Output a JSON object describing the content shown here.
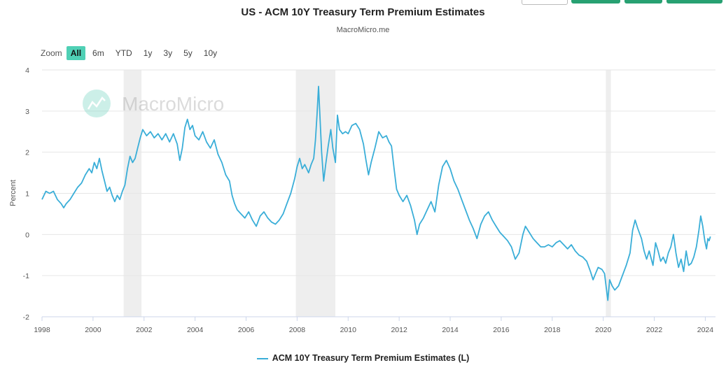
{
  "header": {
    "title": "US - ACM 10Y Treasury Term Premium Estimates",
    "subtitle": "MacroMicro.me"
  },
  "zoom": {
    "label": "Zoom",
    "options": [
      "All",
      "6m",
      "YTD",
      "1y",
      "3y",
      "5y",
      "10y"
    ],
    "active": "All"
  },
  "watermark": "MacroMicro",
  "legend": {
    "label": "ACM 10Y Treasury Term Premium Estimates (L)"
  },
  "colors": {
    "line": "#3aaed8",
    "recession": "#eeeeee",
    "grid": "#e6e6e6",
    "active_zoom": "#4fd0b5",
    "accent_button": "#28a172"
  },
  "chart_data": {
    "type": "line",
    "title": "US - ACM 10Y Treasury Term Premium Estimates",
    "subtitle": "MacroMicro.me",
    "ylabel": "Percent",
    "xlabel": "",
    "ylim": [
      -2,
      4
    ],
    "xlim": [
      1998.0,
      2024.4
    ],
    "y_ticks": [
      4,
      3,
      2,
      1,
      0,
      -1,
      -2
    ],
    "x_ticks": [
      1998,
      2000,
      2002,
      2004,
      2006,
      2008,
      2010,
      2012,
      2014,
      2016,
      2018,
      2020,
      2022,
      2024
    ],
    "grid": true,
    "legend_position": "bottom-center",
    "recession_bands": [
      [
        2001.2,
        2001.9
      ],
      [
        2007.95,
        2009.5
      ],
      [
        2020.1,
        2020.3
      ]
    ],
    "series": [
      {
        "name": "ACM 10Y Treasury Term Premium Estimates (L)",
        "points": [
          [
            1998.0,
            0.85
          ],
          [
            1998.15,
            1.05
          ],
          [
            1998.3,
            1.0
          ],
          [
            1998.45,
            1.05
          ],
          [
            1998.6,
            0.85
          ],
          [
            1998.75,
            0.75
          ],
          [
            1998.85,
            0.65
          ],
          [
            1998.95,
            0.75
          ],
          [
            1999.1,
            0.85
          ],
          [
            1999.25,
            1.0
          ],
          [
            1999.4,
            1.15
          ],
          [
            1999.55,
            1.25
          ],
          [
            1999.7,
            1.45
          ],
          [
            1999.85,
            1.6
          ],
          [
            1999.95,
            1.5
          ],
          [
            2000.05,
            1.75
          ],
          [
            2000.15,
            1.6
          ],
          [
            2000.25,
            1.85
          ],
          [
            2000.35,
            1.55
          ],
          [
            2000.45,
            1.3
          ],
          [
            2000.55,
            1.05
          ],
          [
            2000.65,
            1.15
          ],
          [
            2000.75,
            0.95
          ],
          [
            2000.85,
            0.8
          ],
          [
            2000.95,
            0.95
          ],
          [
            2001.05,
            0.85
          ],
          [
            2001.15,
            1.05
          ],
          [
            2001.25,
            1.2
          ],
          [
            2001.35,
            1.6
          ],
          [
            2001.45,
            1.9
          ],
          [
            2001.55,
            1.75
          ],
          [
            2001.65,
            1.85
          ],
          [
            2001.75,
            2.1
          ],
          [
            2001.85,
            2.35
          ],
          [
            2001.95,
            2.55
          ],
          [
            2002.1,
            2.4
          ],
          [
            2002.25,
            2.5
          ],
          [
            2002.4,
            2.35
          ],
          [
            2002.55,
            2.45
          ],
          [
            2002.7,
            2.3
          ],
          [
            2002.85,
            2.45
          ],
          [
            2003.0,
            2.25
          ],
          [
            2003.15,
            2.45
          ],
          [
            2003.3,
            2.2
          ],
          [
            2003.4,
            1.8
          ],
          [
            2003.5,
            2.1
          ],
          [
            2003.6,
            2.6
          ],
          [
            2003.7,
            2.8
          ],
          [
            2003.8,
            2.55
          ],
          [
            2003.9,
            2.65
          ],
          [
            2004.0,
            2.4
          ],
          [
            2004.15,
            2.3
          ],
          [
            2004.3,
            2.5
          ],
          [
            2004.45,
            2.25
          ],
          [
            2004.6,
            2.1
          ],
          [
            2004.75,
            2.3
          ],
          [
            2004.9,
            1.95
          ],
          [
            2005.05,
            1.75
          ],
          [
            2005.2,
            1.45
          ],
          [
            2005.35,
            1.3
          ],
          [
            2005.45,
            0.95
          ],
          [
            2005.55,
            0.75
          ],
          [
            2005.65,
            0.6
          ],
          [
            2005.8,
            0.5
          ],
          [
            2005.95,
            0.4
          ],
          [
            2006.1,
            0.55
          ],
          [
            2006.25,
            0.35
          ],
          [
            2006.4,
            0.2
          ],
          [
            2006.55,
            0.45
          ],
          [
            2006.7,
            0.55
          ],
          [
            2006.85,
            0.4
          ],
          [
            2007.0,
            0.3
          ],
          [
            2007.15,
            0.25
          ],
          [
            2007.3,
            0.35
          ],
          [
            2007.45,
            0.5
          ],
          [
            2007.6,
            0.75
          ],
          [
            2007.75,
            1.0
          ],
          [
            2007.9,
            1.35
          ],
          [
            2008.0,
            1.65
          ],
          [
            2008.1,
            1.85
          ],
          [
            2008.2,
            1.6
          ],
          [
            2008.3,
            1.7
          ],
          [
            2008.45,
            1.5
          ],
          [
            2008.55,
            1.7
          ],
          [
            2008.65,
            1.85
          ],
          [
            2008.72,
            2.3
          ],
          [
            2008.78,
            2.9
          ],
          [
            2008.84,
            3.6
          ],
          [
            2008.9,
            2.8
          ],
          [
            2008.96,
            2.0
          ],
          [
            2009.04,
            1.3
          ],
          [
            2009.12,
            1.7
          ],
          [
            2009.22,
            2.15
          ],
          [
            2009.32,
            2.55
          ],
          [
            2009.4,
            2.1
          ],
          [
            2009.5,
            1.75
          ],
          [
            2009.58,
            2.9
          ],
          [
            2009.66,
            2.55
          ],
          [
            2009.78,
            2.45
          ],
          [
            2009.9,
            2.5
          ],
          [
            2010.0,
            2.45
          ],
          [
            2010.15,
            2.65
          ],
          [
            2010.3,
            2.7
          ],
          [
            2010.45,
            2.55
          ],
          [
            2010.6,
            2.2
          ],
          [
            2010.7,
            1.8
          ],
          [
            2010.8,
            1.45
          ],
          [
            2010.9,
            1.75
          ],
          [
            2011.05,
            2.1
          ],
          [
            2011.2,
            2.5
          ],
          [
            2011.35,
            2.35
          ],
          [
            2011.5,
            2.4
          ],
          [
            2011.6,
            2.25
          ],
          [
            2011.7,
            2.15
          ],
          [
            2011.8,
            1.6
          ],
          [
            2011.9,
            1.1
          ],
          [
            2012.0,
            0.95
          ],
          [
            2012.15,
            0.8
          ],
          [
            2012.3,
            0.95
          ],
          [
            2012.45,
            0.7
          ],
          [
            2012.6,
            0.35
          ],
          [
            2012.7,
            0.0
          ],
          [
            2012.8,
            0.25
          ],
          [
            2012.95,
            0.4
          ],
          [
            2013.1,
            0.6
          ],
          [
            2013.25,
            0.8
          ],
          [
            2013.4,
            0.55
          ],
          [
            2013.55,
            1.2
          ],
          [
            2013.7,
            1.65
          ],
          [
            2013.85,
            1.8
          ],
          [
            2014.0,
            1.6
          ],
          [
            2014.15,
            1.3
          ],
          [
            2014.3,
            1.1
          ],
          [
            2014.45,
            0.85
          ],
          [
            2014.6,
            0.6
          ],
          [
            2014.75,
            0.35
          ],
          [
            2014.9,
            0.15
          ],
          [
            2015.05,
            -0.1
          ],
          [
            2015.2,
            0.25
          ],
          [
            2015.35,
            0.45
          ],
          [
            2015.5,
            0.55
          ],
          [
            2015.65,
            0.35
          ],
          [
            2015.8,
            0.2
          ],
          [
            2015.95,
            0.05
          ],
          [
            2016.1,
            -0.05
          ],
          [
            2016.25,
            -0.15
          ],
          [
            2016.4,
            -0.3
          ],
          [
            2016.55,
            -0.6
          ],
          [
            2016.7,
            -0.45
          ],
          [
            2016.85,
            0.0
          ],
          [
            2016.95,
            0.2
          ],
          [
            2017.1,
            0.05
          ],
          [
            2017.25,
            -0.1
          ],
          [
            2017.4,
            -0.2
          ],
          [
            2017.55,
            -0.3
          ],
          [
            2017.7,
            -0.3
          ],
          [
            2017.85,
            -0.25
          ],
          [
            2018.0,
            -0.3
          ],
          [
            2018.15,
            -0.2
          ],
          [
            2018.3,
            -0.15
          ],
          [
            2018.45,
            -0.25
          ],
          [
            2018.6,
            -0.35
          ],
          [
            2018.75,
            -0.25
          ],
          [
            2018.9,
            -0.4
          ],
          [
            2019.05,
            -0.5
          ],
          [
            2019.2,
            -0.55
          ],
          [
            2019.35,
            -0.65
          ],
          [
            2019.5,
            -0.9
          ],
          [
            2019.6,
            -1.1
          ],
          [
            2019.7,
            -0.95
          ],
          [
            2019.8,
            -0.8
          ],
          [
            2019.95,
            -0.85
          ],
          [
            2020.05,
            -0.95
          ],
          [
            2020.12,
            -1.3
          ],
          [
            2020.18,
            -1.6
          ],
          [
            2020.25,
            -1.1
          ],
          [
            2020.35,
            -1.25
          ],
          [
            2020.45,
            -1.35
          ],
          [
            2020.6,
            -1.25
          ],
          [
            2020.75,
            -1.0
          ],
          [
            2020.9,
            -0.75
          ],
          [
            2021.05,
            -0.45
          ],
          [
            2021.15,
            0.1
          ],
          [
            2021.25,
            0.35
          ],
          [
            2021.35,
            0.15
          ],
          [
            2021.5,
            -0.1
          ],
          [
            2021.6,
            -0.4
          ],
          [
            2021.7,
            -0.6
          ],
          [
            2021.8,
            -0.4
          ],
          [
            2021.95,
            -0.75
          ],
          [
            2022.05,
            -0.2
          ],
          [
            2022.15,
            -0.4
          ],
          [
            2022.25,
            -0.65
          ],
          [
            2022.35,
            -0.55
          ],
          [
            2022.45,
            -0.7
          ],
          [
            2022.55,
            -0.45
          ],
          [
            2022.65,
            -0.3
          ],
          [
            2022.75,
            0.0
          ],
          [
            2022.85,
            -0.45
          ],
          [
            2022.95,
            -0.8
          ],
          [
            2023.05,
            -0.6
          ],
          [
            2023.15,
            -0.9
          ],
          [
            2023.25,
            -0.4
          ],
          [
            2023.35,
            -0.75
          ],
          [
            2023.45,
            -0.7
          ],
          [
            2023.55,
            -0.55
          ],
          [
            2023.65,
            -0.3
          ],
          [
            2023.75,
            0.1
          ],
          [
            2023.82,
            0.45
          ],
          [
            2023.9,
            0.2
          ],
          [
            2023.98,
            -0.15
          ],
          [
            2024.05,
            -0.35
          ],
          [
            2024.1,
            -0.1
          ],
          [
            2024.15,
            -0.15
          ],
          [
            2024.2,
            -0.05
          ]
        ]
      }
    ]
  }
}
